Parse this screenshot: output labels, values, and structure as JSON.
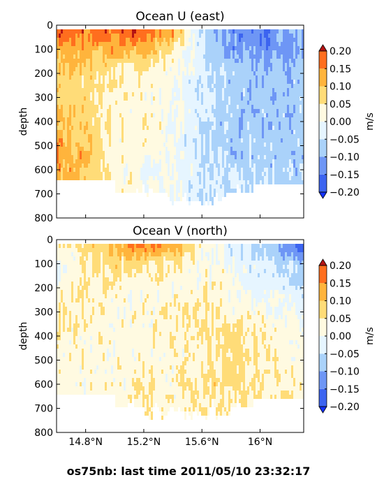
{
  "footer": "os75nb: last time 2011/05/10 23:32:17",
  "colorbar": {
    "unit": "m/s",
    "levels": [
      -0.2,
      -0.15,
      -0.1,
      -0.05,
      0.0,
      0.05,
      0.1,
      0.15,
      0.2
    ],
    "tick_labels": [
      "0.20",
      "0.15",
      "0.10",
      "0.05",
      "0.00",
      "−0.05",
      "−0.10",
      "−0.15",
      "−0.20"
    ],
    "colors": [
      "#1432ff",
      "#3c64f0",
      "#6e96f5",
      "#aad2fa",
      "#e6f5ff",
      "#fffae1",
      "#ffdc78",
      "#ffb43c",
      "#ff6e1e",
      "#e1280a",
      "#b41414"
    ]
  },
  "chart_data": [
    {
      "type": "heatmap",
      "title": "Ocean U (east)",
      "ylabel": "depth",
      "ylim": [
        800,
        0
      ],
      "y_ticks": [
        0,
        100,
        200,
        300,
        400,
        500,
        600,
        700,
        800
      ],
      "y_tick_labels": [
        "0",
        "100",
        "200",
        "300",
        "400",
        "500",
        "600",
        "700",
        "800"
      ],
      "xlim": [
        14.6,
        16.3
      ],
      "x_ticks": [
        14.8,
        15.2,
        15.6,
        16.0
      ],
      "x_tick_labels": [
        "",
        "",
        "",
        ""
      ],
      "x": [
        14.6,
        14.8,
        15.0,
        15.2,
        15.4,
        15.6,
        15.8,
        16.0,
        16.2,
        16.3
      ],
      "depth": [
        30,
        100,
        200,
        300,
        400,
        500,
        600,
        700
      ],
      "values": [
        [
          0.19,
          0.17,
          0.17,
          0.18,
          0.13,
          -0.06,
          -0.12,
          -0.14,
          -0.09,
          -0.08
        ],
        [
          0.14,
          0.12,
          0.13,
          0.11,
          0.06,
          -0.05,
          -0.1,
          -0.13,
          -0.1,
          -0.09
        ],
        [
          0.08,
          0.08,
          0.05,
          0.03,
          0.02,
          -0.04,
          -0.07,
          -0.09,
          -0.08,
          -0.07
        ],
        [
          0.08,
          0.07,
          0.04,
          0.03,
          0.01,
          -0.05,
          -0.07,
          -0.08,
          -0.07,
          -0.06
        ],
        [
          0.12,
          0.08,
          0.04,
          0.03,
          0.0,
          -0.04,
          -0.08,
          -0.08,
          -0.09,
          -0.08
        ],
        [
          0.14,
          0.1,
          0.03,
          0.02,
          0.0,
          -0.05,
          -0.07,
          -0.08,
          -0.07,
          -0.07
        ],
        [
          0.13,
          0.1,
          0.03,
          0.01,
          0.0,
          -0.04,
          -0.06,
          -0.07,
          -0.07,
          -0.06
        ],
        [
          null,
          null,
          null,
          null,
          0.0,
          -0.04,
          null,
          null,
          null,
          null
        ]
      ]
    },
    {
      "type": "heatmap",
      "title": "Ocean V (north)",
      "ylabel": "depth",
      "ylim": [
        800,
        0
      ],
      "y_ticks": [
        0,
        100,
        200,
        300,
        400,
        500,
        600,
        700,
        800
      ],
      "y_tick_labels": [
        "0",
        "100",
        "200",
        "300",
        "400",
        "500",
        "600",
        "700",
        "800"
      ],
      "xlim": [
        14.6,
        16.3
      ],
      "x_ticks": [
        14.8,
        15.2,
        15.6,
        16.0
      ],
      "x_tick_labels": [
        "14.8°N",
        "15.2°N",
        "15.6°N",
        "16°N"
      ],
      "x": [
        14.6,
        14.8,
        15.0,
        15.2,
        15.4,
        15.6,
        15.8,
        16.0,
        16.2,
        16.3
      ],
      "depth": [
        30,
        100,
        200,
        300,
        400,
        500,
        600,
        700
      ],
      "values": [
        [
          0.02,
          0.06,
          0.12,
          0.16,
          0.13,
          0.03,
          -0.02,
          -0.06,
          -0.12,
          -0.17
        ],
        [
          -0.02,
          0.05,
          0.07,
          0.06,
          0.04,
          0.02,
          0.0,
          -0.03,
          -0.06,
          -0.08
        ],
        [
          0.03,
          0.04,
          0.03,
          0.02,
          0.02,
          0.03,
          0.02,
          -0.01,
          -0.03,
          -0.04
        ],
        [
          0.06,
          0.04,
          0.02,
          0.02,
          0.03,
          0.06,
          0.03,
          0.02,
          -0.02,
          -0.02
        ],
        [
          0.04,
          0.03,
          0.02,
          0.02,
          0.03,
          0.04,
          0.07,
          0.04,
          0.02,
          0.01
        ],
        [
          0.02,
          0.02,
          0.02,
          0.03,
          0.03,
          0.04,
          0.07,
          0.05,
          0.02,
          0.02
        ],
        [
          0.03,
          0.02,
          0.03,
          0.04,
          0.03,
          0.05,
          0.06,
          0.05,
          0.04,
          0.06
        ],
        [
          null,
          null,
          null,
          null,
          0.03,
          0.05,
          null,
          null,
          null,
          null
        ]
      ]
    }
  ]
}
